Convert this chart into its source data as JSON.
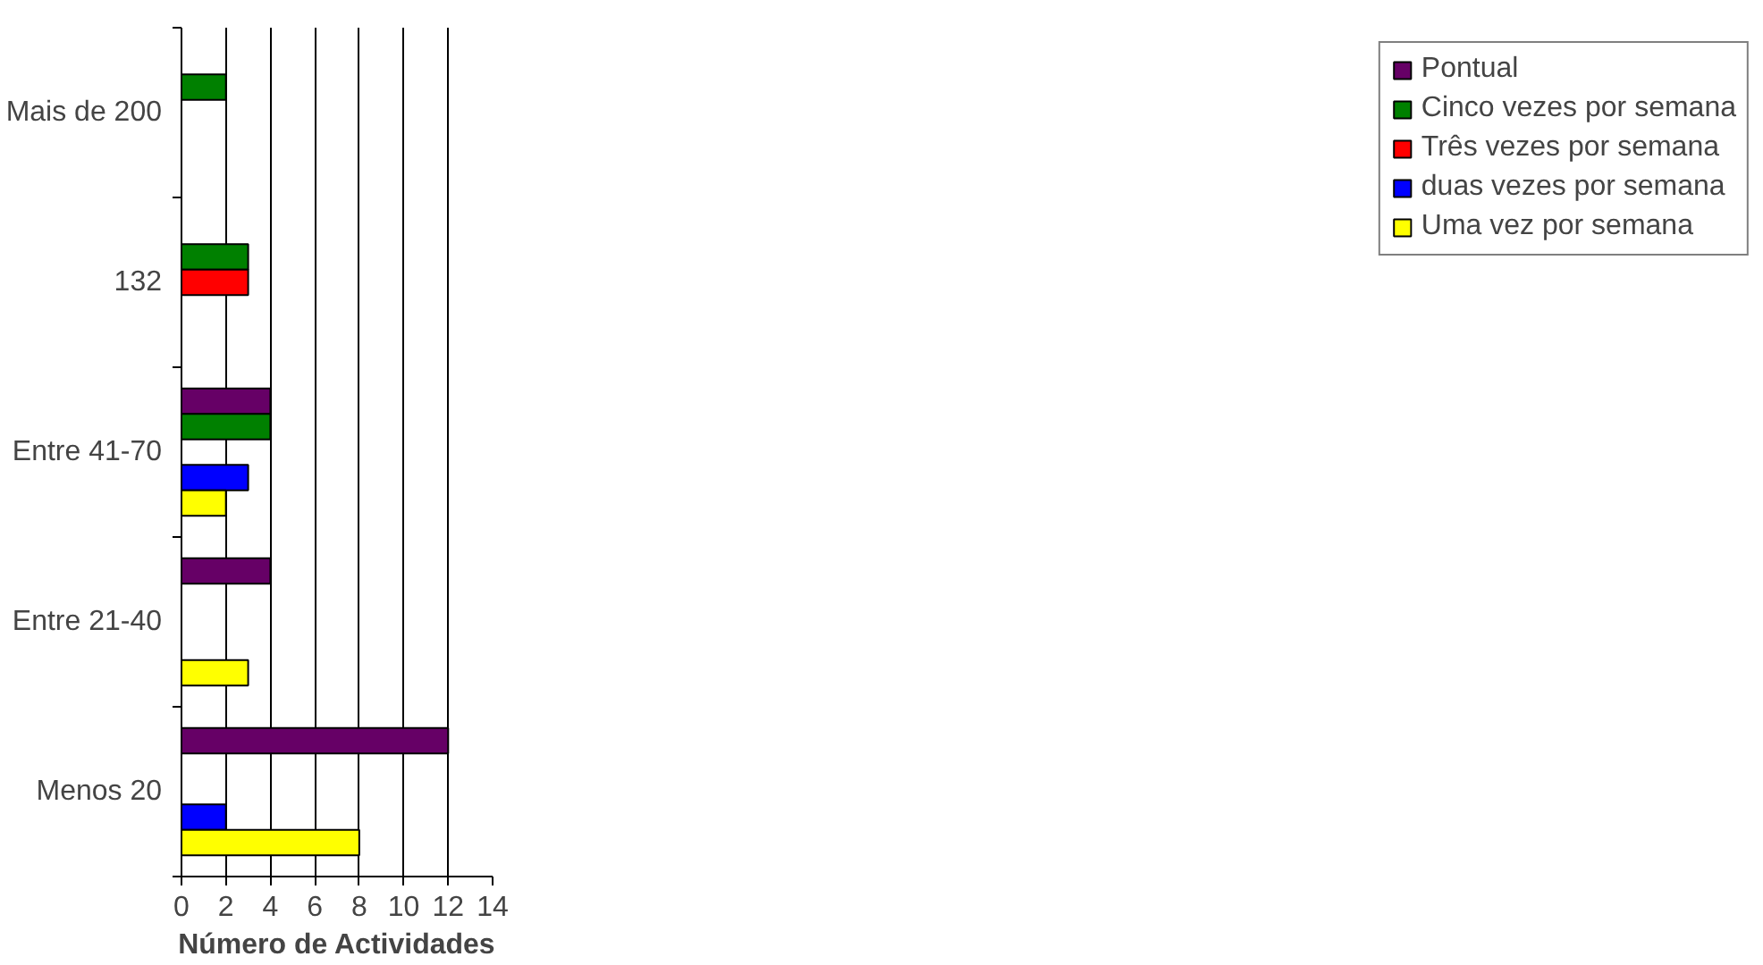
{
  "chart_data": {
    "type": "bar",
    "orientation": "horizontal",
    "xlabel": "Número de Actividades",
    "categories": [
      "Mais de 200",
      "132",
      "Entre 41-70",
      "Entre 21-40",
      "Menos 20"
    ],
    "series": [
      {
        "name": "Pontual",
        "color": "#660066",
        "values": [
          null,
          null,
          4,
          4,
          12
        ]
      },
      {
        "name": "Cinco vezes por semana",
        "color": "#008000",
        "values": [
          2,
          3,
          4,
          null,
          null
        ]
      },
      {
        "name": "Três vezes por semana",
        "color": "#ff0000",
        "values": [
          null,
          3,
          null,
          null,
          null
        ]
      },
      {
        "name": "duas vezes por semana",
        "color": "#0000ff",
        "values": [
          null,
          null,
          3,
          null,
          2
        ]
      },
      {
        "name": "Uma vez por semana",
        "color": "#ffff00",
        "values": [
          null,
          null,
          2,
          3,
          8
        ]
      }
    ],
    "xlim": [
      0,
      14
    ],
    "xticks": [
      0,
      2,
      4,
      6,
      8,
      10,
      12,
      14
    ],
    "grid": "x",
    "legend": "right"
  }
}
